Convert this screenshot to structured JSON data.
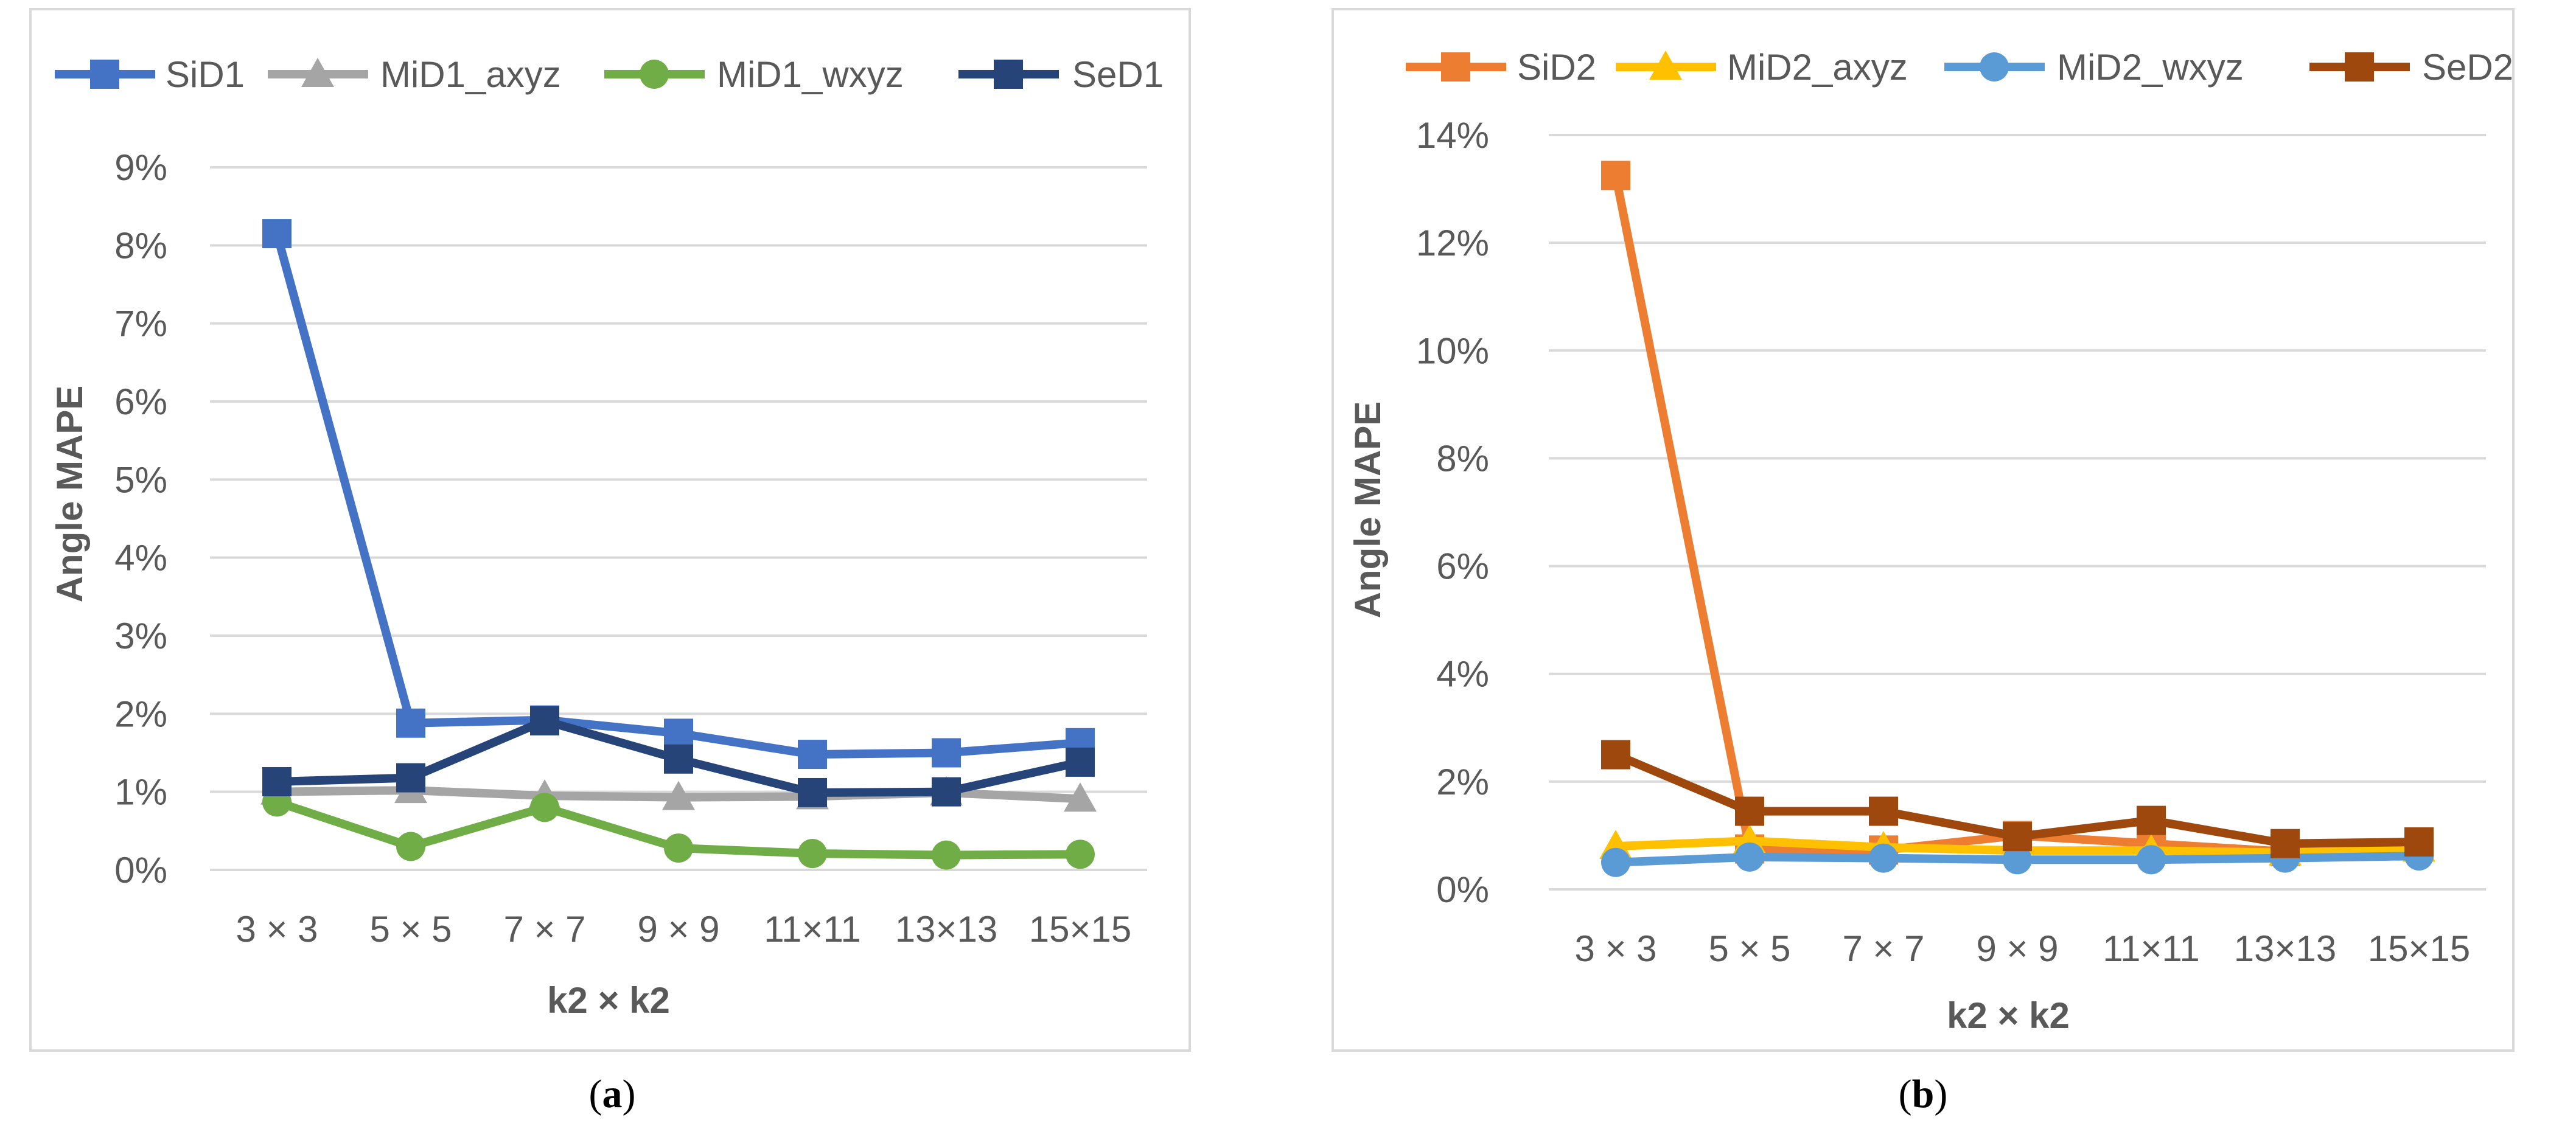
{
  "charts": [
    {
      "panel_label": "a",
      "chart_data": {
        "type": "line",
        "title": "",
        "xlabel": "k2 × k2",
        "ylabel": "Angle MAPE",
        "categories": [
          "3 × 3",
          "5 × 5",
          "7 × 7",
          "9 × 9",
          "11×11",
          "13×13",
          "15×15"
        ],
        "ylim": [
          0,
          9
        ],
        "yticks": [
          0,
          1,
          2,
          3,
          4,
          5,
          6,
          7,
          8,
          9
        ],
        "ytick_labels": [
          "0%",
          "1%",
          "2%",
          "3%",
          "4%",
          "5%",
          "6%",
          "7%",
          "8%",
          "9%"
        ],
        "grid": true,
        "legend_position": "top",
        "series": [
          {
            "name": "SiD1",
            "color": "#4472C4",
            "marker": "square",
            "values": [
              8.15,
              1.88,
              1.92,
              1.75,
              1.48,
              1.5,
              1.63
            ]
          },
          {
            "name": "MiD1_axyz",
            "color": "#A5A5A5",
            "marker": "triangle",
            "values": [
              1.0,
              1.02,
              0.95,
              0.93,
              0.94,
              0.99,
              0.91
            ]
          },
          {
            "name": "MiD1_wxyz",
            "color": "#70AD47",
            "marker": "circle",
            "values": [
              0.87,
              0.3,
              0.8,
              0.28,
              0.21,
              0.19,
              0.2
            ]
          },
          {
            "name": "SeD1",
            "color": "#264478",
            "marker": "square",
            "values": [
              1.13,
              1.18,
              1.91,
              1.42,
              0.99,
              1.0,
              1.38
            ]
          }
        ]
      }
    },
    {
      "panel_label": "b",
      "chart_data": {
        "type": "line",
        "title": "",
        "xlabel": "k2 × k2",
        "ylabel": "Angle MAPE",
        "categories": [
          "3 × 3",
          "5 × 5",
          "7 × 7",
          "9 × 9",
          "11×11",
          "13×13",
          "15×15"
        ],
        "ylim": [
          0,
          14
        ],
        "yticks": [
          0,
          2,
          4,
          6,
          8,
          10,
          12,
          14
        ],
        "ytick_labels": [
          "0%",
          "2%",
          "4%",
          "6%",
          "8%",
          "10%",
          "12%",
          "14%"
        ],
        "grid": true,
        "legend_position": "top",
        "series": [
          {
            "name": "SiD2",
            "color": "#ED7D31",
            "marker": "square",
            "values": [
              13.25,
              0.75,
              0.73,
              1.0,
              0.85,
              0.7,
              0.82
            ]
          },
          {
            "name": "MiD2_axyz",
            "color": "#FFC000",
            "marker": "triangle",
            "values": [
              0.8,
              0.9,
              0.78,
              0.72,
              0.72,
              0.68,
              0.75
            ]
          },
          {
            "name": "MiD2_wxyz",
            "color": "#5B9BD5",
            "marker": "circle",
            "values": [
              0.5,
              0.6,
              0.58,
              0.55,
              0.55,
              0.58,
              0.62
            ]
          },
          {
            "name": "SeD2",
            "color": "#9E480E",
            "marker": "square",
            "values": [
              2.5,
              1.45,
              1.45,
              0.98,
              1.28,
              0.85,
              0.88
            ]
          }
        ]
      }
    }
  ]
}
